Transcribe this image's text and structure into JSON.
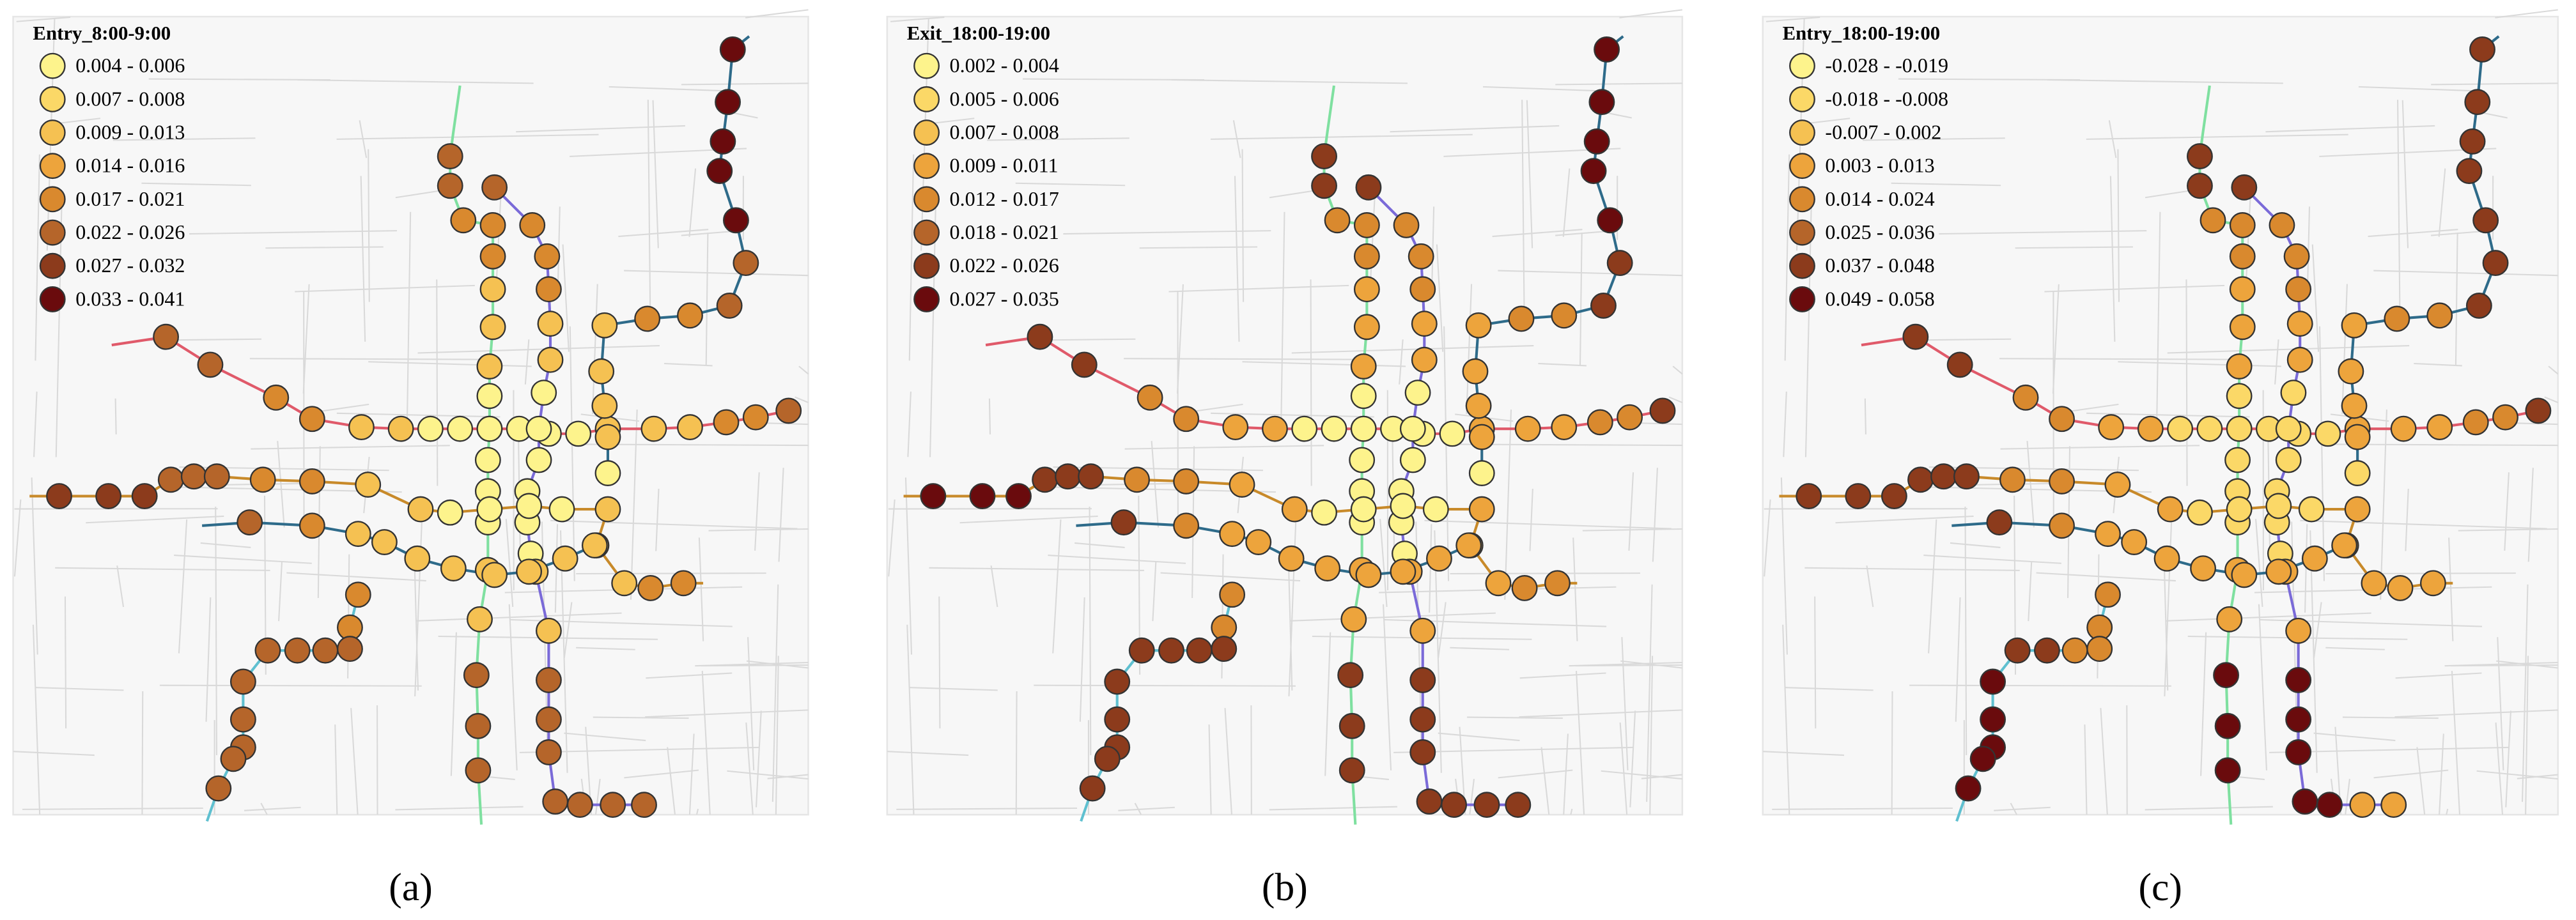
{
  "panels": [
    {
      "title": "Entry_8:00-9:00",
      "label": "(a)",
      "legend": [
        {
          "label": "0.004 - 0.006",
          "color": "#fdf38c"
        },
        {
          "label": "0.007 - 0.008",
          "color": "#fbd867"
        },
        {
          "label": "0.009 - 0.013",
          "color": "#f5c152"
        },
        {
          "label": "0.014 - 0.016",
          "color": "#eda43c"
        },
        {
          "label": "0.017 - 0.021",
          "color": "#d9892e"
        },
        {
          "label": "0.022 - 0.026",
          "color": "#b5652a"
        },
        {
          "label": "0.027 - 0.032",
          "color": "#8c3b1c"
        },
        {
          "label": "0.033 - 0.041",
          "color": "#6a0b0d"
        }
      ]
    },
    {
      "title": "Exit_18:00-19:00",
      "label": "(b)",
      "legend": [
        {
          "label": "0.002 - 0.004",
          "color": "#fdf38c"
        },
        {
          "label": "0.005 - 0.006",
          "color": "#fbd867"
        },
        {
          "label": "0.007 - 0.008",
          "color": "#f5c152"
        },
        {
          "label": "0.009 - 0.011",
          "color": "#eda43c"
        },
        {
          "label": "0.012 - 0.017",
          "color": "#d9892e"
        },
        {
          "label": "0.018 - 0.021",
          "color": "#b5652a"
        },
        {
          "label": "0.022 - 0.026",
          "color": "#8c3b1c"
        },
        {
          "label": "0.027 - 0.035",
          "color": "#6a0b0d"
        }
      ]
    },
    {
      "title": "Entry_18:00-19:00",
      "label": "(c)",
      "legend": [
        {
          "label": "-0.028 - -0.019",
          "color": "#fdf38c"
        },
        {
          "label": "-0.018 - -0.008",
          "color": "#fbd867"
        },
        {
          "label": "-0.007 - 0.002",
          "color": "#f5c152"
        },
        {
          "label": "0.003 - 0.013",
          "color": "#eda43c"
        },
        {
          "label": "0.014 - 0.024",
          "color": "#d9892e"
        },
        {
          "label": "0.025 - 0.036",
          "color": "#b5652a"
        },
        {
          "label": "0.037 - 0.048",
          "color": "#8c3b1c"
        },
        {
          "label": "0.049 - 0.058",
          "color": "#6a0b0d"
        }
      ]
    }
  ]
}
